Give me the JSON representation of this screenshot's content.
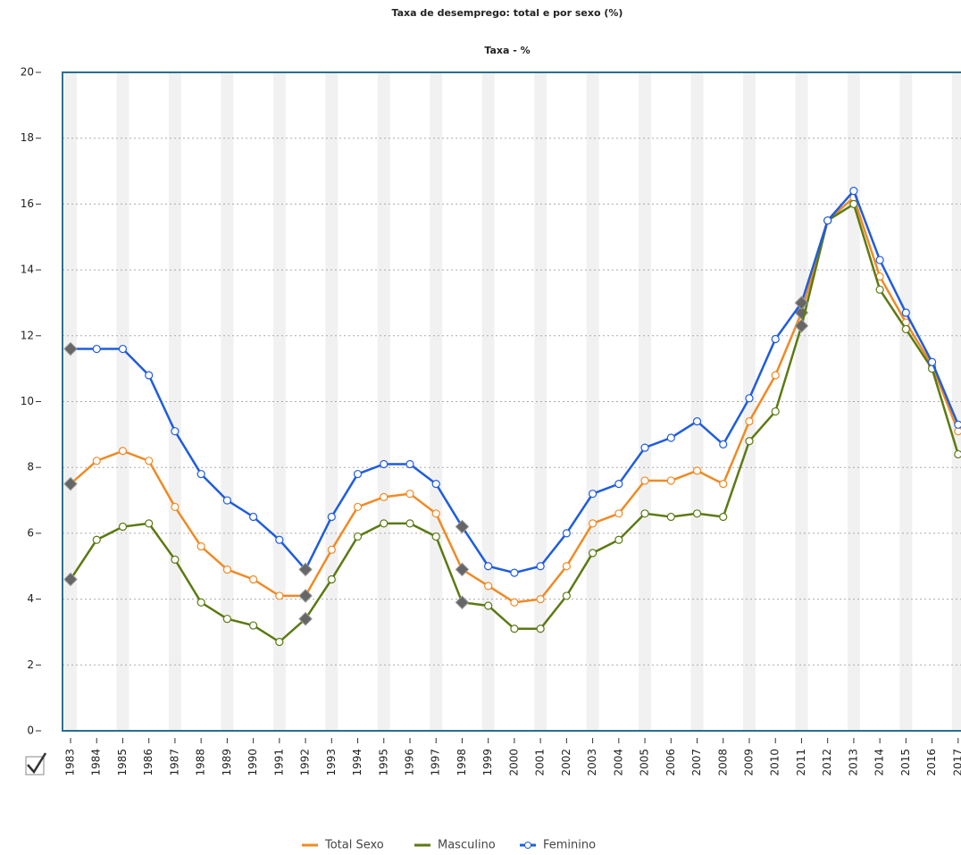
{
  "chart_data": {
    "type": "line",
    "title": "Taxa de desemprego: total e por sexo (%)",
    "subtitle": "Taxa - %",
    "categories": [
      "1983",
      "1984",
      "1985",
      "1986",
      "1987",
      "1988",
      "1989",
      "1990",
      "1991",
      "1992",
      "1993",
      "1994",
      "1995",
      "1996",
      "1997",
      "1998",
      "1999",
      "2000",
      "2001",
      "2002",
      "2003",
      "2004",
      "2005",
      "2006",
      "2007",
      "2008",
      "2009",
      "2010",
      "2011",
      "2012",
      "2013",
      "2014",
      "2015",
      "2016",
      "2017"
    ],
    "series": [
      {
        "name": "Total Sexo",
        "color": "#f08a24",
        "values": [
          7.5,
          8.2,
          8.5,
          8.2,
          6.8,
          5.6,
          4.9,
          4.6,
          4.1,
          4.1,
          5.5,
          6.8,
          7.1,
          7.2,
          6.6,
          4.9,
          4.4,
          3.9,
          4.0,
          5.0,
          6.3,
          6.6,
          7.6,
          7.6,
          7.9,
          7.5,
          9.4,
          10.8,
          12.7,
          15.5,
          16.2,
          13.8,
          12.4,
          11.1,
          9.1
        ]
      },
      {
        "name": "Masculino",
        "color": "#5b7a12",
        "values": [
          4.6,
          5.8,
          6.2,
          6.3,
          5.2,
          3.9,
          3.4,
          3.2,
          2.7,
          3.4,
          4.6,
          5.9,
          6.3,
          6.3,
          5.9,
          3.9,
          3.8,
          3.1,
          3.1,
          4.1,
          5.4,
          5.8,
          6.6,
          6.5,
          6.6,
          6.5,
          8.8,
          9.7,
          12.3,
          15.5,
          16.0,
          13.4,
          12.2,
          11.0,
          8.4
        ]
      },
      {
        "name": "Feminino",
        "color": "#1f5ce0",
        "values": [
          11.6,
          11.6,
          11.6,
          10.8,
          9.1,
          7.8,
          7.0,
          6.5,
          5.8,
          4.9,
          6.5,
          7.8,
          8.1,
          8.1,
          7.5,
          6.2,
          5.0,
          4.8,
          5.0,
          6.0,
          7.2,
          7.5,
          8.6,
          8.9,
          9.4,
          8.7,
          10.1,
          11.9,
          13.0,
          15.5,
          16.4,
          14.3,
          12.7,
          11.2,
          9.3
        ]
      }
    ],
    "highlighted_categories": [
      "1983",
      "1992",
      "1998",
      "2011"
    ],
    "ylim": [
      0,
      20
    ],
    "yticks": [
      0,
      2,
      4,
      6,
      8,
      10,
      12,
      14,
      16,
      18,
      20
    ],
    "grid": true
  }
}
